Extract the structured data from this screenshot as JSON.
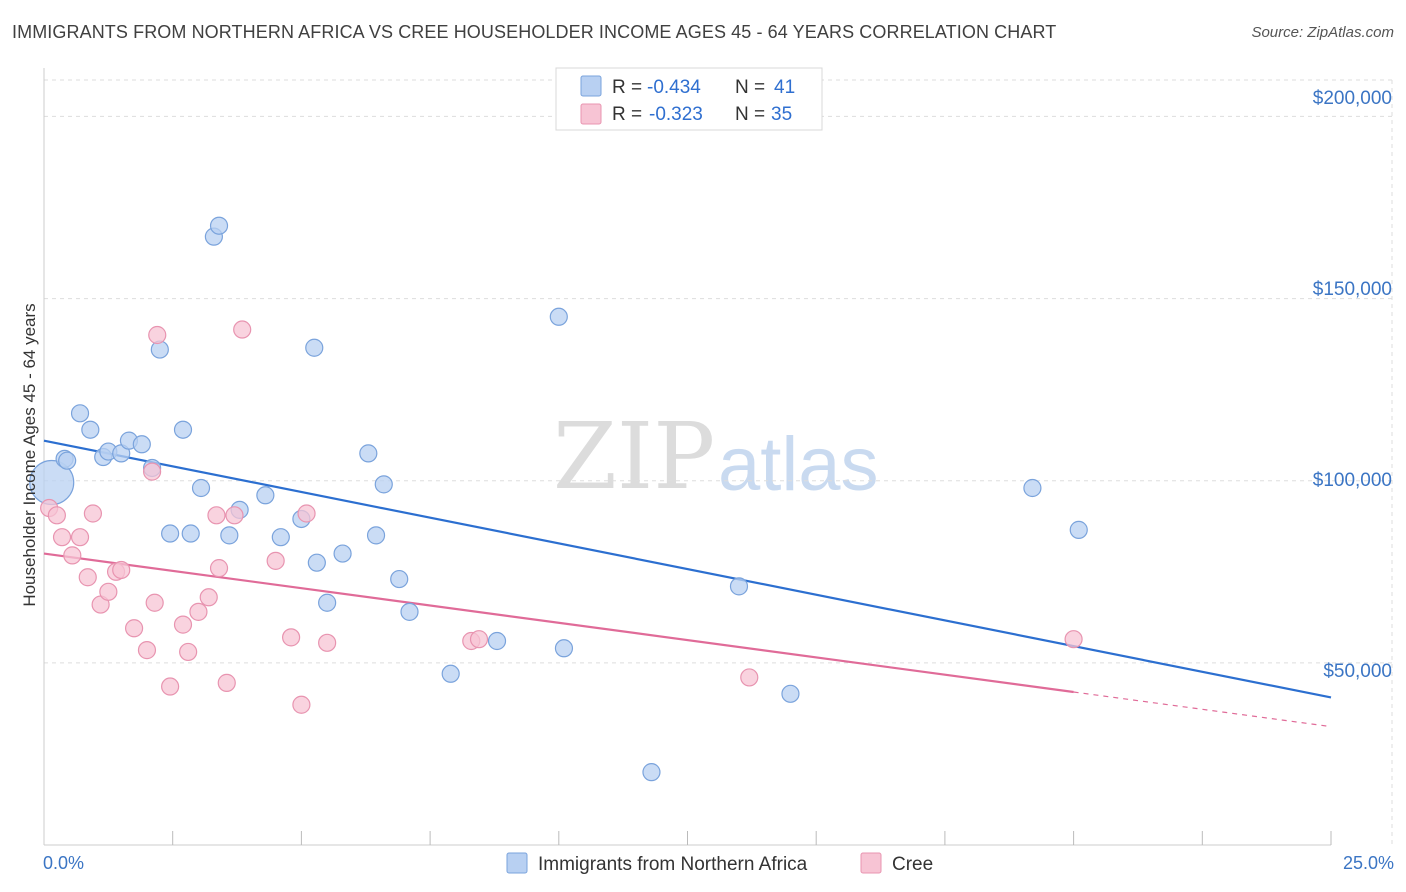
{
  "title": "IMMIGRANTS FROM NORTHERN AFRICA VS CREE HOUSEHOLDER INCOME AGES 45 - 64 YEARS CORRELATION CHART",
  "source": "Source: ZipAtlas.com",
  "watermark": {
    "zip": "ZIP",
    "atlas": "atlas"
  },
  "legend": {
    "r_label": "R =",
    "n_label": "N =",
    "rows": [
      {
        "r": "-0.434",
        "n": "41"
      },
      {
        "r": "-0.323",
        "n": "35"
      }
    ]
  },
  "colors": {
    "blue_fill": "#b8d0f2",
    "blue_stroke": "#7aa3dc",
    "blue_line": "#2c6fd0",
    "pink_fill": "#f7c4d4",
    "pink_stroke": "#e894b0",
    "pink_line": "#e06b98",
    "grid": "#dddddd",
    "axis_text": "#3b75c4"
  },
  "chart_data": {
    "type": "scatter",
    "title": "IMMIGRANTS FROM NORTHERN AFRICA VS CREE HOUSEHOLDER INCOME AGES 45 - 64 YEARS CORRELATION CHART",
    "xlabel": "",
    "ylabel": "Householder Income Ages 45 - 64 years",
    "xlim": [
      0,
      25
    ],
    "ylim": [
      0,
      210000
    ],
    "x_tick_labels": [
      "0.0%",
      "25.0%"
    ],
    "y_ticks": [
      50000,
      100000,
      150000,
      200000
    ],
    "y_tick_labels": [
      "$50,000",
      "$100,000",
      "$150,000",
      "$200,000"
    ],
    "grid": true,
    "legend_position": "top-center",
    "series": [
      {
        "name": "Immigrants from Northern Africa",
        "color": "#7aa3dc",
        "r": -0.434,
        "n": 41,
        "trend": {
          "x": [
            0,
            25
          ],
          "y": [
            111000,
            40500
          ]
        },
        "points": [
          {
            "x": 0.15,
            "y": 99500,
            "big": true
          },
          {
            "x": 0.4,
            "y": 106000
          },
          {
            "x": 0.7,
            "y": 118500
          },
          {
            "x": 0.9,
            "y": 114000
          },
          {
            "x": 1.15,
            "y": 106500
          },
          {
            "x": 1.25,
            "y": 108000
          },
          {
            "x": 1.5,
            "y": 107500
          },
          {
            "x": 1.65,
            "y": 111000
          },
          {
            "x": 1.9,
            "y": 110000
          },
          {
            "x": 2.1,
            "y": 103500
          },
          {
            "x": 2.25,
            "y": 136000
          },
          {
            "x": 2.45,
            "y": 85500
          },
          {
            "x": 2.7,
            "y": 114000
          },
          {
            "x": 2.85,
            "y": 85500
          },
          {
            "x": 3.05,
            "y": 98000
          },
          {
            "x": 3.3,
            "y": 167000
          },
          {
            "x": 3.4,
            "y": 170000
          },
          {
            "x": 3.6,
            "y": 85000
          },
          {
            "x": 3.8,
            "y": 92000
          },
          {
            "x": 4.3,
            "y": 96000
          },
          {
            "x": 4.6,
            "y": 84500
          },
          {
            "x": 5.0,
            "y": 89500
          },
          {
            "x": 5.25,
            "y": 136500
          },
          {
            "x": 5.3,
            "y": 77500
          },
          {
            "x": 5.5,
            "y": 66500
          },
          {
            "x": 5.8,
            "y": 80000
          },
          {
            "x": 6.3,
            "y": 107500
          },
          {
            "x": 6.45,
            "y": 85000
          },
          {
            "x": 6.6,
            "y": 99000
          },
          {
            "x": 6.9,
            "y": 73000
          },
          {
            "x": 7.1,
            "y": 64000
          },
          {
            "x": 7.9,
            "y": 47000
          },
          {
            "x": 8.8,
            "y": 56000
          },
          {
            "x": 10.0,
            "y": 145000
          },
          {
            "x": 10.1,
            "y": 54000
          },
          {
            "x": 11.8,
            "y": 20000
          },
          {
            "x": 13.5,
            "y": 71000
          },
          {
            "x": 14.5,
            "y": 41500
          },
          {
            "x": 19.2,
            "y": 98000
          },
          {
            "x": 20.1,
            "y": 86500
          },
          {
            "x": 0.45,
            "y": 105500
          }
        ]
      },
      {
        "name": "Cree",
        "color": "#e894b0",
        "r": -0.323,
        "n": 35,
        "trend": {
          "x": [
            0,
            20
          ],
          "y": [
            80000,
            42000
          ],
          "dashed_to": {
            "x": 25,
            "y": 32500
          }
        },
        "points": [
          {
            "x": 0.1,
            "y": 92500
          },
          {
            "x": 0.25,
            "y": 90500
          },
          {
            "x": 0.35,
            "y": 84500
          },
          {
            "x": 0.55,
            "y": 79500
          },
          {
            "x": 0.7,
            "y": 84500
          },
          {
            "x": 0.85,
            "y": 73500
          },
          {
            "x": 0.95,
            "y": 91000
          },
          {
            "x": 1.1,
            "y": 66000
          },
          {
            "x": 1.25,
            "y": 69500
          },
          {
            "x": 1.4,
            "y": 75000
          },
          {
            "x": 1.5,
            "y": 75500
          },
          {
            "x": 1.75,
            "y": 59500
          },
          {
            "x": 2.0,
            "y": 53500
          },
          {
            "x": 2.1,
            "y": 102500
          },
          {
            "x": 2.15,
            "y": 66500
          },
          {
            "x": 2.2,
            "y": 140000
          },
          {
            "x": 2.45,
            "y": 43500
          },
          {
            "x": 2.7,
            "y": 60500
          },
          {
            "x": 2.8,
            "y": 53000
          },
          {
            "x": 3.0,
            "y": 64000
          },
          {
            "x": 3.2,
            "y": 68000
          },
          {
            "x": 3.35,
            "y": 90500
          },
          {
            "x": 3.4,
            "y": 76000
          },
          {
            "x": 3.55,
            "y": 44500
          },
          {
            "x": 3.7,
            "y": 90500
          },
          {
            "x": 3.85,
            "y": 141500
          },
          {
            "x": 4.5,
            "y": 78000
          },
          {
            "x": 4.8,
            "y": 57000
          },
          {
            "x": 5.0,
            "y": 38500
          },
          {
            "x": 5.1,
            "y": 91000
          },
          {
            "x": 5.5,
            "y": 55500
          },
          {
            "x": 8.3,
            "y": 56000
          },
          {
            "x": 8.45,
            "y": 56500
          },
          {
            "x": 13.7,
            "y": 46000
          },
          {
            "x": 20.0,
            "y": 56500
          }
        ]
      }
    ]
  },
  "bottom_legend": [
    {
      "label": "Immigrants from Northern Africa"
    },
    {
      "label": "Cree"
    }
  ]
}
